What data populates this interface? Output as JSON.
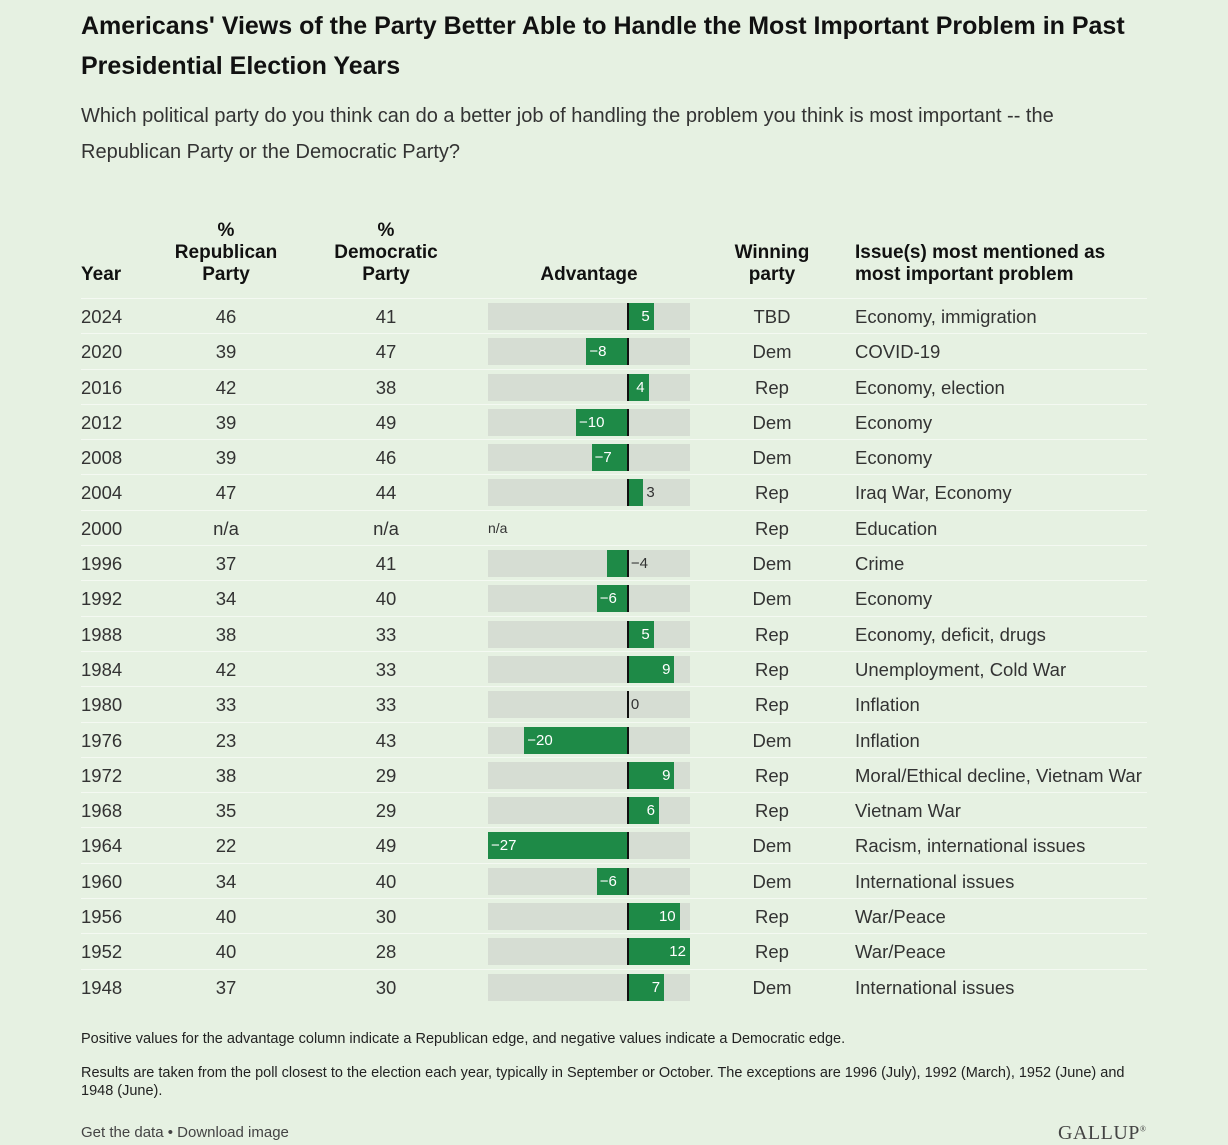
{
  "title": "Americans' Views of the Party Better Able to Handle the Most Important Problem in Past Presidential Election Years",
  "subtitle": "Which political party do you think can do a better job of handling the problem you think is most important -- the Republican Party or the Democratic Party?",
  "headers": {
    "year": "Year",
    "rep_line1": "%",
    "rep_line2": "Republican",
    "rep_line3": "Party",
    "dem_line1": "%",
    "dem_line2": "Democratic",
    "dem_line3": "Party",
    "advantage": "Advantage",
    "winning_line1": "Winning",
    "winning_line2": "party",
    "issue_line1": "Issue(s) most mentioned as",
    "issue_line2": "most important problem"
  },
  "colors": {
    "background": "#e6f1e2",
    "bar": "#1e8a47",
    "track": "#d6ddd3"
  },
  "chart_data": {
    "type": "table",
    "advantage_range": [
      -27,
      12
    ],
    "rows": [
      {
        "year": "2024",
        "rep": "46",
        "dem": "41",
        "advantage": 5,
        "advantage_label": "5",
        "winner": "TBD",
        "issue": "Economy, immigration"
      },
      {
        "year": "2020",
        "rep": "39",
        "dem": "47",
        "advantage": -8,
        "advantage_label": "−8",
        "winner": "Dem",
        "issue": "COVID-19"
      },
      {
        "year": "2016",
        "rep": "42",
        "dem": "38",
        "advantage": 4,
        "advantage_label": "4",
        "winner": "Rep",
        "issue": "Economy, election"
      },
      {
        "year": "2012",
        "rep": "39",
        "dem": "49",
        "advantage": -10,
        "advantage_label": "−10",
        "winner": "Dem",
        "issue": "Economy"
      },
      {
        "year": "2008",
        "rep": "39",
        "dem": "46",
        "advantage": -7,
        "advantage_label": "−7",
        "winner": "Dem",
        "issue": "Economy"
      },
      {
        "year": "2004",
        "rep": "47",
        "dem": "44",
        "advantage": 3,
        "advantage_label": "3",
        "winner": "Rep",
        "issue": "Iraq War, Economy"
      },
      {
        "year": "2000",
        "rep": "n/a",
        "dem": "n/a",
        "advantage": null,
        "advantage_label": "n/a",
        "winner": "Rep",
        "issue": "Education"
      },
      {
        "year": "1996",
        "rep": "37",
        "dem": "41",
        "advantage": -4,
        "advantage_label": "−4",
        "winner": "Dem",
        "issue": "Crime"
      },
      {
        "year": "1992",
        "rep": "34",
        "dem": "40",
        "advantage": -6,
        "advantage_label": "−6",
        "winner": "Dem",
        "issue": "Economy"
      },
      {
        "year": "1988",
        "rep": "38",
        "dem": "33",
        "advantage": 5,
        "advantage_label": "5",
        "winner": "Rep",
        "issue": "Economy, deficit, drugs"
      },
      {
        "year": "1984",
        "rep": "42",
        "dem": "33",
        "advantage": 9,
        "advantage_label": "9",
        "winner": "Rep",
        "issue": "Unemployment, Cold War"
      },
      {
        "year": "1980",
        "rep": "33",
        "dem": "33",
        "advantage": 0,
        "advantage_label": "0",
        "winner": "Rep",
        "issue": "Inflation"
      },
      {
        "year": "1976",
        "rep": "23",
        "dem": "43",
        "advantage": -20,
        "advantage_label": "−20",
        "winner": "Dem",
        "issue": "Inflation"
      },
      {
        "year": "1972",
        "rep": "38",
        "dem": "29",
        "advantage": 9,
        "advantage_label": "9",
        "winner": "Rep",
        "issue": "Moral/Ethical decline, Vietnam War"
      },
      {
        "year": "1968",
        "rep": "35",
        "dem": "29",
        "advantage": 6,
        "advantage_label": "6",
        "winner": "Rep",
        "issue": "Vietnam War"
      },
      {
        "year": "1964",
        "rep": "22",
        "dem": "49",
        "advantage": -27,
        "advantage_label": "−27",
        "winner": "Dem",
        "issue": "Racism, international issues"
      },
      {
        "year": "1960",
        "rep": "34",
        "dem": "40",
        "advantage": -6,
        "advantage_label": "−6",
        "winner": "Dem",
        "issue": "International issues"
      },
      {
        "year": "1956",
        "rep": "40",
        "dem": "30",
        "advantage": 10,
        "advantage_label": "10",
        "winner": "Rep",
        "issue": "War/Peace"
      },
      {
        "year": "1952",
        "rep": "40",
        "dem": "28",
        "advantage": 12,
        "advantage_label": "12",
        "winner": "Rep",
        "issue": "War/Peace"
      },
      {
        "year": "1948",
        "rep": "37",
        "dem": "30",
        "advantage": 7,
        "advantage_label": "7",
        "winner": "Dem",
        "issue": "International issues"
      }
    ]
  },
  "notes": {
    "note1": "Positive values for the advantage column indicate a Republican edge, and negative values indicate a Democratic edge.",
    "note2": "Results are taken from the poll closest to the election each year, typically in September or October. The exceptions are 1996 (July), 1992 (March), 1952 (June) and 1948 (June)."
  },
  "footer": {
    "get_data": "Get the data",
    "separator": " • ",
    "download": "Download image",
    "logo": "GALLUP",
    "logo_mark": "®"
  }
}
